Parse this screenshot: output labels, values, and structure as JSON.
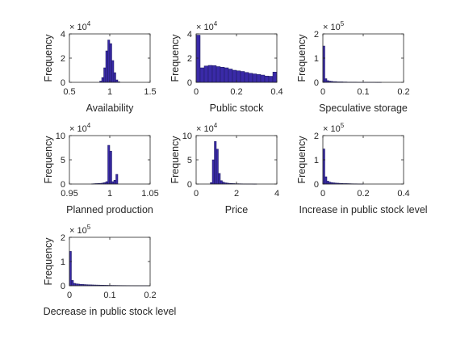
{
  "bar_color": "#3a2aa8",
  "bar_edge": "#1a1a5a",
  "axis_color": "#262626",
  "chart_data": [
    {
      "type": "bar",
      "xlabel": "Availability",
      "ylabel": "Frequency",
      "multiplier": {
        "base": "10",
        "exp": "4",
        "prefix": "× "
      },
      "xlim": [
        0.5,
        1.5
      ],
      "ylim": [
        0,
        4
      ],
      "xticks": [
        0.5,
        1,
        1.5
      ],
      "xtick_labels": [
        "0.5",
        "1",
        "1.5"
      ],
      "yticks": [
        0,
        2,
        4
      ],
      "ytick_labels": [
        "0",
        "2",
        "4"
      ],
      "bin_width": 0.025,
      "bins_start": [
        0.875,
        0.9,
        0.925,
        0.95,
        0.975,
        1.0,
        1.025,
        1.05,
        1.075,
        1.1
      ],
      "counts": [
        0.1,
        0.4,
        1.2,
        2.6,
        3.5,
        3.2,
        1.8,
        0.8,
        0.2,
        0.05
      ]
    },
    {
      "type": "bar",
      "xlabel": "Public stock",
      "ylabel": "Frequency",
      "multiplier": {
        "base": "10",
        "exp": "4",
        "prefix": "× "
      },
      "xlim": [
        0,
        0.4
      ],
      "ylim": [
        0,
        4
      ],
      "xticks": [
        0,
        0.2,
        0.4
      ],
      "xtick_labels": [
        "0",
        "0.2",
        "0.4"
      ],
      "yticks": [
        0,
        2,
        4
      ],
      "ytick_labels": [
        "0",
        "2",
        "4"
      ],
      "bin_width": 0.02,
      "bins_start": [
        0,
        0.02,
        0.04,
        0.06,
        0.08,
        0.1,
        0.12,
        0.14,
        0.16,
        0.18,
        0.2,
        0.22,
        0.24,
        0.26,
        0.28,
        0.3,
        0.32,
        0.34,
        0.36,
        0.38
      ],
      "counts": [
        3.9,
        1.2,
        1.35,
        1.4,
        1.38,
        1.3,
        1.25,
        1.2,
        1.1,
        1.0,
        0.95,
        0.9,
        0.82,
        0.75,
        0.7,
        0.65,
        0.6,
        0.52,
        0.5,
        0.85
      ]
    },
    {
      "type": "bar",
      "xlabel": "Speculative storage",
      "ylabel": "Frequency",
      "multiplier": {
        "base": "10",
        "exp": "5",
        "prefix": "× "
      },
      "xlim": [
        0,
        0.2
      ],
      "ylim": [
        0,
        2
      ],
      "xticks": [
        0,
        0.1,
        0.2
      ],
      "xtick_labels": [
        "0",
        "0.1",
        "0.2"
      ],
      "yticks": [
        0,
        1,
        2
      ],
      "ytick_labels": [
        "0",
        "1",
        "2"
      ],
      "bin_width": 0.005,
      "bins_start": [
        0,
        0.005,
        0.01,
        0.015,
        0.02,
        0.025,
        0.03,
        0.035,
        0.04,
        0.045,
        0.05,
        0.055,
        0.06,
        0.065,
        0.07,
        0.075,
        0.08,
        0.085,
        0.09,
        0.095,
        0.1,
        0.105,
        0.11,
        0.115,
        0.12,
        0.125,
        0.13,
        0.135,
        0.14
      ],
      "counts": [
        1.5,
        0.15,
        0.07,
        0.05,
        0.04,
        0.03,
        0.03,
        0.02,
        0.02,
        0.02,
        0.015,
        0.015,
        0.01,
        0.01,
        0.01,
        0.01,
        0.01,
        0.008,
        0.008,
        0.008,
        0.006,
        0.006,
        0.006,
        0.005,
        0.005,
        0.005,
        0.004,
        0.004,
        0.004
      ]
    },
    {
      "type": "bar",
      "xlabel": "Planned production",
      "ylabel": "Frequency",
      "multiplier": {
        "base": "10",
        "exp": "4",
        "prefix": "× "
      },
      "xlim": [
        0.95,
        1.05
      ],
      "ylim": [
        0,
        10
      ],
      "xticks": [
        0.95,
        1,
        1.05
      ],
      "xtick_labels": [
        "0.95",
        "1",
        "1.05"
      ],
      "yticks": [
        0,
        5,
        10
      ],
      "ytick_labels": [
        "0",
        "5",
        "10"
      ],
      "bin_width": 0.0025,
      "bins_start": [
        0.9775,
        0.98,
        0.9825,
        0.985,
        0.9875,
        0.99,
        0.9925,
        0.995,
        0.9975,
        1.0,
        1.0025,
        1.005,
        1.0075
      ],
      "counts": [
        0.05,
        0.08,
        0.1,
        0.12,
        0.15,
        0.2,
        0.3,
        0.5,
        8.0,
        6.8,
        0.5,
        0.8,
        2.0
      ]
    },
    {
      "type": "bar",
      "xlabel": "Price",
      "ylabel": "Frequency",
      "multiplier": {
        "base": "10",
        "exp": "4",
        "prefix": "× "
      },
      "xlim": [
        0,
        4
      ],
      "ylim": [
        0,
        10
      ],
      "xticks": [
        0,
        2,
        4
      ],
      "xtick_labels": [
        "0",
        "2",
        "4"
      ],
      "yticks": [
        0,
        5,
        10
      ],
      "ytick_labels": [
        "0",
        "5",
        "10"
      ],
      "bin_width": 0.1,
      "bins_start": [
        0.7,
        0.8,
        0.9,
        1.0,
        1.1,
        1.2,
        1.3,
        1.4,
        1.5,
        1.6,
        1.7,
        1.8,
        1.9,
        2.0,
        2.1,
        2.2,
        2.3,
        2.4,
        2.5,
        2.6,
        2.7,
        2.8,
        2.9
      ],
      "counts": [
        0.3,
        5.0,
        8.8,
        7.2,
        2.2,
        0.7,
        0.4,
        0.25,
        0.2,
        0.15,
        0.12,
        0.1,
        0.08,
        0.07,
        0.06,
        0.05,
        0.04,
        0.04,
        0.03,
        0.03,
        0.03,
        0.02,
        0.02
      ]
    },
    {
      "type": "bar",
      "xlabel": "Increase in public stock level",
      "ylabel": "Frequency",
      "multiplier": {
        "base": "10",
        "exp": "5",
        "prefix": "× "
      },
      "xlim": [
        0,
        0.4
      ],
      "ylim": [
        0,
        2
      ],
      "xticks": [
        0,
        0.2,
        0.4
      ],
      "xtick_labels": [
        "0",
        "0.2",
        "0.4"
      ],
      "yticks": [
        0,
        1,
        2
      ],
      "ytick_labels": [
        "0",
        "1",
        "2"
      ],
      "bin_width": 0.01,
      "bins_start": [
        0,
        0.01,
        0.02,
        0.03,
        0.04,
        0.05,
        0.06,
        0.07,
        0.08,
        0.09,
        0.1,
        0.11,
        0.12,
        0.13,
        0.14,
        0.15,
        0.16,
        0.17,
        0.18,
        0.19
      ],
      "counts": [
        1.45,
        0.3,
        0.12,
        0.08,
        0.06,
        0.05,
        0.04,
        0.035,
        0.03,
        0.025,
        0.02,
        0.02,
        0.018,
        0.015,
        0.012,
        0.01,
        0.01,
        0.008,
        0.006,
        0.005
      ]
    },
    {
      "type": "bar",
      "xlabel": "Decrease in public stock level",
      "ylabel": "Frequency",
      "multiplier": {
        "base": "10",
        "exp": "5",
        "prefix": "× "
      },
      "xlim": [
        0,
        0.2
      ],
      "ylim": [
        0,
        2
      ],
      "xticks": [
        0,
        0.1,
        0.2
      ],
      "xtick_labels": [
        "0",
        "0.1",
        "0.2"
      ],
      "yticks": [
        0,
        1,
        2
      ],
      "ytick_labels": [
        "0",
        "1",
        "2"
      ],
      "bin_width": 0.005,
      "bins_start": [
        0,
        0.005,
        0.01,
        0.015,
        0.02,
        0.025,
        0.03,
        0.035,
        0.04,
        0.045,
        0.05,
        0.055,
        0.06,
        0.065,
        0.07,
        0.075,
        0.08,
        0.085,
        0.09,
        0.095,
        0.1,
        0.105,
        0.11,
        0.115,
        0.12,
        0.125,
        0.13,
        0.135,
        0.14,
        0.145,
        0.15,
        0.155,
        0.16,
        0.165,
        0.17,
        0.175,
        0.18,
        0.185,
        0.19,
        0.195
      ],
      "counts": [
        1.42,
        0.22,
        0.1,
        0.08,
        0.07,
        0.06,
        0.055,
        0.05,
        0.045,
        0.04,
        0.038,
        0.035,
        0.032,
        0.03,
        0.028,
        0.026,
        0.024,
        0.022,
        0.02,
        0.018,
        0.016,
        0.015,
        0.014,
        0.013,
        0.012,
        0.011,
        0.01,
        0.01,
        0.009,
        0.009,
        0.008,
        0.008,
        0.007,
        0.007,
        0.006,
        0.006,
        0.005,
        0.005,
        0.005,
        0.004
      ]
    }
  ]
}
